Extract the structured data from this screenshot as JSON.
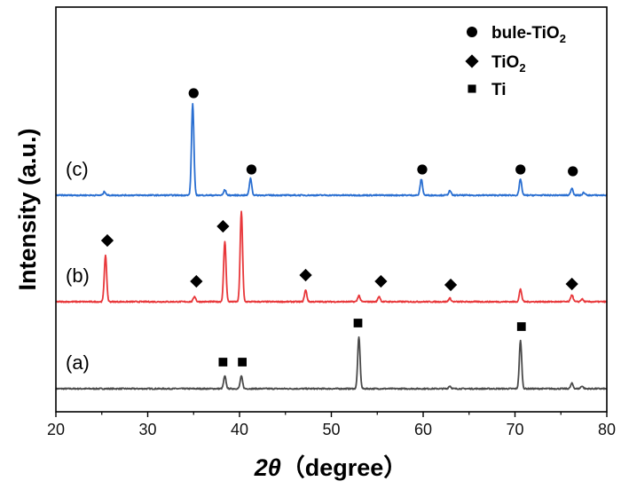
{
  "chart_data": {
    "type": "line",
    "xlabel_symbol": "2θ",
    "xlabel_unit": "（degree）",
    "ylabel": "Intensity (a.u.)",
    "xlim": [
      20,
      80
    ],
    "x_ticks": [
      20,
      30,
      40,
      50,
      60,
      70,
      80
    ],
    "y_ticks_shown": false,
    "legend_position": "top-right",
    "legend": [
      {
        "marker": "circle",
        "text": "bule-TiO",
        "sub": "2"
      },
      {
        "marker": "diamond",
        "text": "TiO",
        "sub": "2"
      },
      {
        "marker": "square",
        "text": "Ti",
        "sub": ""
      }
    ],
    "series": [
      {
        "name": "(a)",
        "color": "#4a4a4a",
        "baseline": 0,
        "peaks": [
          {
            "x": 38.4,
            "h": 14
          },
          {
            "x": 40.2,
            "h": 14
          },
          {
            "x": 53.0,
            "h": 58
          },
          {
            "x": 62.9,
            "h": 3
          },
          {
            "x": 70.6,
            "h": 54
          },
          {
            "x": 76.2,
            "h": 6
          },
          {
            "x": 77.3,
            "h": 3
          }
        ],
        "markers": [
          {
            "x": 38.2,
            "h": 30,
            "shape": "square"
          },
          {
            "x": 40.3,
            "h": 30,
            "shape": "square"
          },
          {
            "x": 52.9,
            "h": 74,
            "shape": "square"
          },
          {
            "x": 70.7,
            "h": 70,
            "shape": "square"
          }
        ]
      },
      {
        "name": "(b)",
        "color": "#e8373a",
        "baseline": 98,
        "peaks": [
          {
            "x": 25.4,
            "h": 52
          },
          {
            "x": 35.1,
            "h": 6
          },
          {
            "x": 38.4,
            "h": 68
          },
          {
            "x": 40.2,
            "h": 102
          },
          {
            "x": 47.2,
            "h": 13
          },
          {
            "x": 53.0,
            "h": 7
          },
          {
            "x": 55.2,
            "h": 6
          },
          {
            "x": 62.9,
            "h": 4
          },
          {
            "x": 70.6,
            "h": 14
          },
          {
            "x": 76.2,
            "h": 8
          },
          {
            "x": 77.3,
            "h": 3
          }
        ],
        "markers": [
          {
            "x": 25.6,
            "h": 69,
            "shape": "diamond"
          },
          {
            "x": 35.3,
            "h": 23,
            "shape": "diamond"
          },
          {
            "x": 38.2,
            "h": 85,
            "shape": "diamond"
          },
          {
            "x": 47.2,
            "h": 30,
            "shape": "diamond"
          },
          {
            "x": 55.4,
            "h": 23,
            "shape": "diamond"
          },
          {
            "x": 63.0,
            "h": 19,
            "shape": "diamond"
          },
          {
            "x": 76.2,
            "h": 20,
            "shape": "diamond"
          }
        ]
      },
      {
        "name": "(c)",
        "color": "#2a6fd1",
        "baseline": 218,
        "peaks": [
          {
            "x": 25.3,
            "h": 4
          },
          {
            "x": 34.9,
            "h": 103
          },
          {
            "x": 38.4,
            "h": 6
          },
          {
            "x": 41.2,
            "h": 19
          },
          {
            "x": 59.8,
            "h": 18
          },
          {
            "x": 62.9,
            "h": 5
          },
          {
            "x": 70.6,
            "h": 18
          },
          {
            "x": 76.2,
            "h": 8
          },
          {
            "x": 77.5,
            "h": 3
          }
        ],
        "markers": [
          {
            "x": 35.0,
            "h": 115,
            "shape": "circle"
          },
          {
            "x": 41.3,
            "h": 29,
            "shape": "circle"
          },
          {
            "x": 59.9,
            "h": 29,
            "shape": "circle"
          },
          {
            "x": 70.6,
            "h": 29,
            "shape": "circle"
          },
          {
            "x": 76.3,
            "h": 27,
            "shape": "circle"
          }
        ]
      }
    ]
  }
}
